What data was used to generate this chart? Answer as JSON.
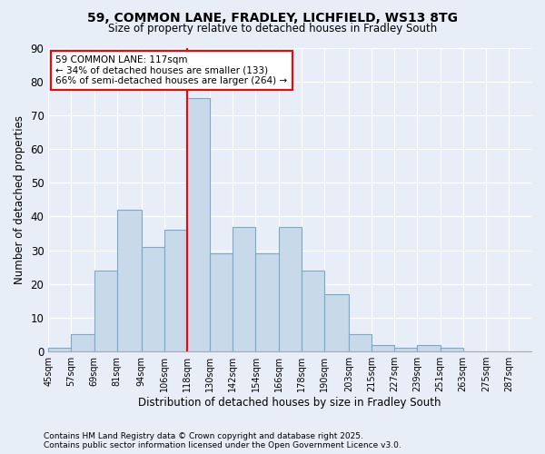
{
  "title1": "59, COMMON LANE, FRADLEY, LICHFIELD, WS13 8TG",
  "title2": "Size of property relative to detached houses in Fradley South",
  "xlabel": "Distribution of detached houses by size in Fradley South",
  "ylabel": "Number of detached properties",
  "bin_starts": [
    45,
    57,
    69,
    81,
    94,
    106,
    118,
    130,
    142,
    154,
    166,
    178,
    190,
    203,
    215,
    227,
    239,
    251,
    263,
    275,
    287
  ],
  "counts": [
    1,
    5,
    24,
    42,
    31,
    36,
    75,
    29,
    37,
    29,
    37,
    24,
    17,
    5,
    2,
    1,
    2,
    1,
    0,
    0,
    0
  ],
  "bar_color": "#c8d9ea",
  "bar_edge_color": "#7aaac8",
  "red_line_x": 118,
  "annotation_line1": "59 COMMON LANE: 117sqm",
  "annotation_line2": "← 34% of detached houses are smaller (133)",
  "annotation_line3": "66% of semi-detached houses are larger (264) →",
  "annotation_box_color": "white",
  "annotation_box_edge": "red",
  "footnote1": "Contains HM Land Registry data © Crown copyright and database right 2025.",
  "footnote2": "Contains public sector information licensed under the Open Government Licence v3.0.",
  "ylim": [
    0,
    90
  ],
  "yticks": [
    0,
    10,
    20,
    30,
    40,
    50,
    60,
    70,
    80,
    90
  ],
  "bg_color": "#e8eef8",
  "plot_bg_color": "#e8eef8",
  "grid_color": "white",
  "figsize": [
    6.0,
    5.0
  ]
}
